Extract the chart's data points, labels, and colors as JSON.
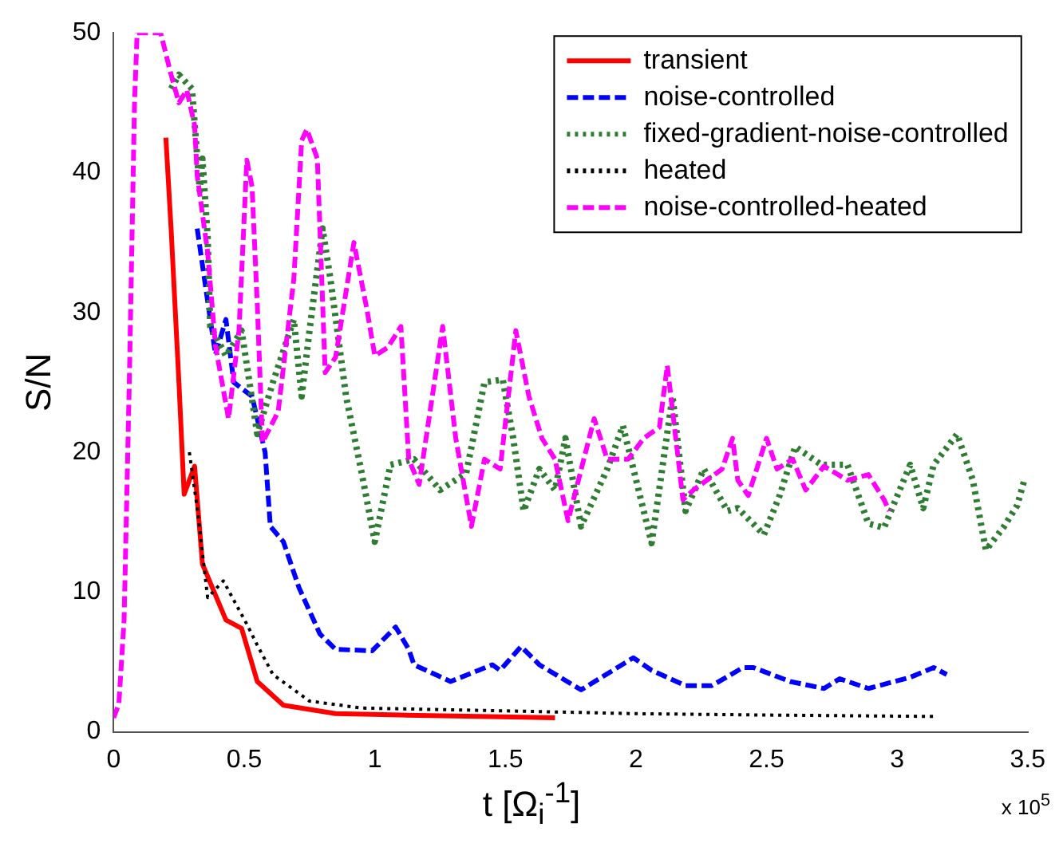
{
  "chart_data": {
    "type": "line",
    "xlabel": "t [Ω$_{i}$$^{-1}$]",
    "ylabel": "S/N",
    "xlim": [
      0,
      3.5
    ],
    "ylim": [
      0,
      50
    ],
    "xticks": [
      0,
      0.5,
      1,
      1.5,
      2,
      2.5,
      3,
      3.5
    ],
    "yticks": [
      0,
      10,
      20,
      30,
      40,
      50
    ],
    "grid": false,
    "legend": "top right",
    "marker": "none",
    "annotations": [
      "x 10$^{5}$"
    ],
    "series": [
      {
        "name": "transient",
        "color": "#ff0000",
        "line_style": "solid",
        "x": [
          0.2,
          0.22,
          0.25,
          0.27,
          0.31,
          0.34,
          0.43,
          0.49,
          0.55,
          0.65,
          0.85,
          1.1,
          1.4,
          1.69
        ],
        "values": [
          42.5,
          36,
          25,
          17,
          19,
          12,
          8,
          7.4,
          3.6,
          1.9,
          1.3,
          1.2,
          1.1,
          1.0
        ]
      },
      {
        "name": "noise-controlled",
        "color": "#0000ff",
        "line_style": "dashed",
        "x": [
          0.32,
          0.37,
          0.39,
          0.43,
          0.46,
          0.53,
          0.58,
          0.6,
          0.65,
          0.71,
          0.79,
          0.85,
          0.99,
          1.08,
          1.13,
          1.15,
          1.29,
          1.45,
          1.48,
          1.56,
          1.63,
          1.79,
          1.99,
          2.06,
          2.19,
          2.29,
          2.41,
          2.45,
          2.59,
          2.72,
          2.78,
          2.89,
          3.05,
          3.14,
          3.19
        ],
        "values": [
          36,
          29.5,
          27,
          29.5,
          25,
          24,
          20,
          14.7,
          13.6,
          10.3,
          7,
          5.9,
          5.8,
          7.5,
          5.9,
          4.8,
          3.6,
          4.8,
          4.4,
          6.1,
          4.8,
          3.0,
          5.3,
          4.4,
          3.3,
          3.3,
          4.6,
          4.6,
          3.6,
          3.1,
          3.8,
          3.1,
          3.9,
          4.6,
          4.1
        ]
      },
      {
        "name": "fixed-gradient-noise-controlled",
        "color": "#2e7d32",
        "line_style": "dotted",
        "x": [
          0.22,
          0.25,
          0.3,
          0.33,
          0.34,
          0.36,
          0.37,
          0.43,
          0.49,
          0.55,
          0.61,
          0.69,
          0.72,
          0.75,
          0.8,
          0.83,
          0.89,
          0.95,
          1.0,
          1.06,
          1.15,
          1.25,
          1.35,
          1.42,
          1.49,
          1.53,
          1.57,
          1.63,
          1.69,
          1.73,
          1.79,
          1.89,
          1.95,
          2.01,
          2.06,
          2.14,
          2.19,
          2.26,
          2.35,
          2.39,
          2.49,
          2.55,
          2.61,
          2.71,
          2.81,
          2.89,
          2.95,
          3.05,
          3.1,
          3.14,
          3.23,
          3.29,
          3.34,
          3.41,
          3.46,
          3.49
        ],
        "values": [
          46,
          47,
          46,
          38.7,
          41,
          35.4,
          29,
          26.9,
          28.7,
          21.3,
          25,
          29.5,
          24,
          28.7,
          36,
          32.4,
          24,
          18.5,
          13.6,
          19.1,
          19.5,
          17.3,
          18.5,
          25,
          25.2,
          21,
          15.8,
          18.8,
          17.3,
          21,
          14.7,
          18.8,
          21.9,
          17.3,
          13.5,
          24,
          15.8,
          18.8,
          15.8,
          16,
          14.1,
          16.9,
          20.4,
          19.1,
          19.1,
          14.9,
          14.6,
          19.1,
          16,
          19.1,
          21.3,
          18,
          13,
          14.7,
          16.2,
          18.2
        ]
      },
      {
        "name": "heated",
        "color": "#000000",
        "line_style": "dotted",
        "x": [
          0.29,
          0.32,
          0.36,
          0.42,
          0.51,
          0.55,
          0.61,
          0.75,
          0.95,
          1.5,
          2.0,
          2.5,
          3.14
        ],
        "values": [
          20,
          16,
          9.6,
          10.8,
          7.7,
          6.2,
          4.1,
          2.2,
          1.7,
          1.5,
          1.3,
          1.2,
          1.1
        ]
      },
      {
        "name": "noise-controlled-heated",
        "color": "#ff00ff",
        "line_style": "dashed",
        "x": [
          0,
          0.02,
          0.04,
          0.06,
          0.08,
          0.09,
          0.18,
          0.22,
          0.25,
          0.28,
          0.31,
          0.32,
          0.36,
          0.39,
          0.44,
          0.48,
          0.51,
          0.53,
          0.55,
          0.57,
          0.63,
          0.69,
          0.72,
          0.74,
          0.78,
          0.81,
          0.85,
          0.92,
          0.97,
          1.0,
          1.05,
          1.1,
          1.13,
          1.17,
          1.26,
          1.31,
          1.37,
          1.42,
          1.48,
          1.54,
          1.59,
          1.64,
          1.69,
          1.74,
          1.84,
          1.89,
          1.97,
          2.03,
          2.09,
          2.12,
          2.18,
          2.22,
          2.33,
          2.37,
          2.39,
          2.43,
          2.5,
          2.54,
          2.6,
          2.65,
          2.72,
          2.81,
          2.89,
          2.95,
          2.97
        ],
        "values": [
          1,
          2,
          8,
          25,
          45,
          50,
          50,
          47,
          45,
          45.9,
          43.4,
          39.8,
          34.3,
          27.6,
          22.4,
          28.7,
          40.9,
          39,
          30.6,
          20.7,
          22.9,
          32.4,
          42.3,
          43.1,
          41,
          25.7,
          26.8,
          35,
          30.2,
          26.9,
          27.5,
          29,
          19.5,
          17.7,
          29,
          21,
          14.7,
          19.5,
          18.8,
          28.7,
          24,
          21,
          19.5,
          15.1,
          22.4,
          19.5,
          19.5,
          21,
          21.8,
          26.2,
          16.6,
          17.3,
          18.8,
          21,
          18,
          16.9,
          21,
          18.8,
          19.5,
          17.3,
          19,
          18,
          18.4,
          16.6,
          15.8
        ]
      }
    ]
  }
}
